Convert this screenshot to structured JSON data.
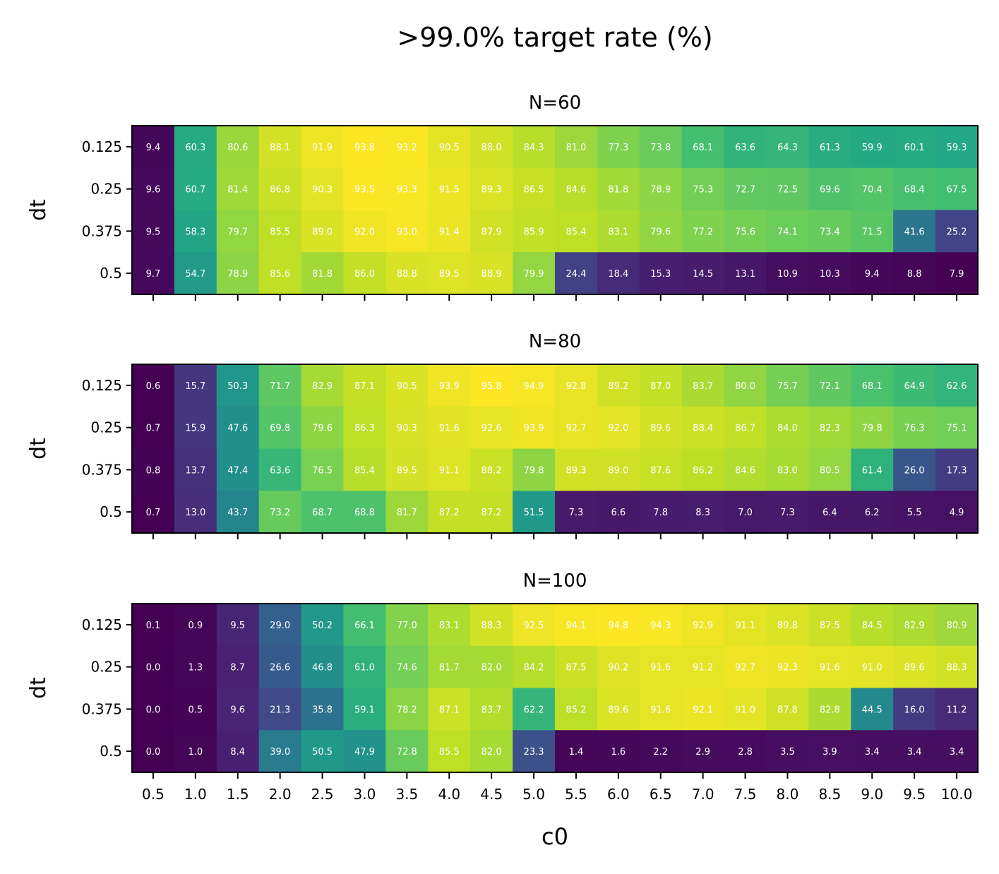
{
  "figure": {
    "title": ">99.0% target rate (%)",
    "xlabel": "c0"
  },
  "chart_data": [
    {
      "type": "heatmap",
      "title": "N=60",
      "xlabel": "c0",
      "ylabel": "dt",
      "colormap": "viridis",
      "x": [
        "0.5",
        "1.0",
        "1.5",
        "2.0",
        "2.5",
        "3.0",
        "3.5",
        "4.0",
        "4.5",
        "5.0",
        "5.5",
        "6.0",
        "6.5",
        "7.0",
        "7.5",
        "8.0",
        "8.5",
        "9.0",
        "9.5",
        "10.0"
      ],
      "y": [
        "0.125",
        "0.25",
        "0.375",
        "0.5"
      ],
      "values": [
        [
          9.4,
          60.3,
          80.6,
          88.1,
          91.9,
          93.8,
          93.2,
          90.5,
          88.0,
          84.3,
          81.0,
          77.3,
          73.8,
          68.1,
          63.6,
          64.3,
          61.3,
          59.9,
          60.1,
          59.3
        ],
        [
          9.6,
          60.7,
          81.4,
          86.8,
          90.3,
          93.5,
          93.3,
          91.5,
          89.3,
          86.5,
          84.6,
          81.8,
          78.9,
          75.3,
          72.7,
          72.5,
          69.6,
          70.4,
          68.4,
          67.5
        ],
        [
          9.5,
          58.3,
          79.7,
          85.5,
          89.0,
          92.0,
          93.0,
          91.4,
          87.9,
          85.9,
          85.4,
          83.1,
          79.6,
          77.2,
          75.6,
          74.1,
          73.4,
          71.5,
          41.6,
          25.2
        ],
        [
          9.7,
          54.7,
          78.9,
          85.6,
          81.8,
          86.0,
          88.8,
          89.5,
          88.9,
          79.9,
          24.4,
          18.4,
          15.3,
          14.5,
          13.1,
          10.9,
          10.3,
          9.4,
          8.8,
          7.9
        ]
      ]
    },
    {
      "type": "heatmap",
      "title": "N=80",
      "xlabel": "c0",
      "ylabel": "dt",
      "colormap": "viridis",
      "x": [
        "0.5",
        "1.0",
        "1.5",
        "2.0",
        "2.5",
        "3.0",
        "3.5",
        "4.0",
        "4.5",
        "5.0",
        "5.5",
        "6.0",
        "6.5",
        "7.0",
        "7.5",
        "8.0",
        "8.5",
        "9.0",
        "9.5",
        "10.0"
      ],
      "y": [
        "0.125",
        "0.25",
        "0.375",
        "0.5"
      ],
      "values": [
        [
          0.6,
          15.7,
          50.3,
          71.7,
          82.9,
          87.1,
          90.5,
          93.9,
          95.8,
          94.9,
          92.8,
          89.2,
          87.0,
          83.7,
          80.0,
          75.7,
          72.1,
          68.1,
          64.9,
          62.6
        ],
        [
          0.7,
          15.9,
          47.6,
          69.8,
          79.6,
          86.3,
          90.3,
          91.6,
          92.6,
          93.9,
          92.7,
          92.0,
          89.6,
          88.4,
          86.7,
          84.0,
          82.3,
          79.8,
          76.3,
          75.1
        ],
        [
          0.8,
          13.7,
          47.4,
          63.6,
          76.5,
          85.4,
          89.5,
          91.1,
          88.2,
          79.8,
          89.3,
          89.0,
          87.6,
          86.2,
          84.6,
          83.0,
          80.5,
          61.4,
          26.0,
          17.3
        ],
        [
          0.7,
          13.0,
          43.7,
          73.2,
          68.7,
          68.8,
          81.7,
          87.2,
          87.2,
          51.5,
          7.3,
          6.6,
          7.8,
          8.3,
          7.0,
          7.3,
          6.4,
          6.2,
          5.5,
          4.9
        ]
      ]
    },
    {
      "type": "heatmap",
      "title": "N=100",
      "xlabel": "c0",
      "ylabel": "dt",
      "colormap": "viridis",
      "x": [
        "0.5",
        "1.0",
        "1.5",
        "2.0",
        "2.5",
        "3.0",
        "3.5",
        "4.0",
        "4.5",
        "5.0",
        "5.5",
        "6.0",
        "6.5",
        "7.0",
        "7.5",
        "8.0",
        "8.5",
        "9.0",
        "9.5",
        "10.0"
      ],
      "y": [
        "0.125",
        "0.25",
        "0.375",
        "0.5"
      ],
      "values": [
        [
          0.1,
          0.9,
          9.5,
          29.0,
          50.2,
          66.1,
          77.0,
          83.1,
          88.3,
          92.5,
          94.1,
          94.8,
          94.3,
          92.9,
          91.1,
          89.8,
          87.5,
          84.5,
          82.9,
          80.9
        ],
        [
          0.0,
          1.3,
          8.7,
          26.6,
          46.8,
          61.0,
          74.6,
          81.7,
          82.0,
          84.2,
          87.5,
          90.2,
          91.6,
          91.2,
          92.7,
          92.3,
          91.6,
          91.0,
          89.6,
          88.3
        ],
        [
          0.0,
          0.5,
          9.6,
          21.3,
          35.8,
          59.1,
          78.2,
          87.1,
          83.7,
          62.2,
          85.2,
          89.6,
          91.6,
          92.1,
          91.0,
          87.8,
          82.8,
          44.5,
          16.0,
          11.2
        ],
        [
          0.0,
          1.0,
          8.4,
          39.0,
          50.5,
          47.9,
          72.8,
          85.5,
          82.0,
          23.3,
          1.4,
          1.6,
          2.2,
          2.9,
          2.8,
          3.5,
          3.9,
          3.4,
          3.4,
          3.4
        ]
      ]
    }
  ]
}
